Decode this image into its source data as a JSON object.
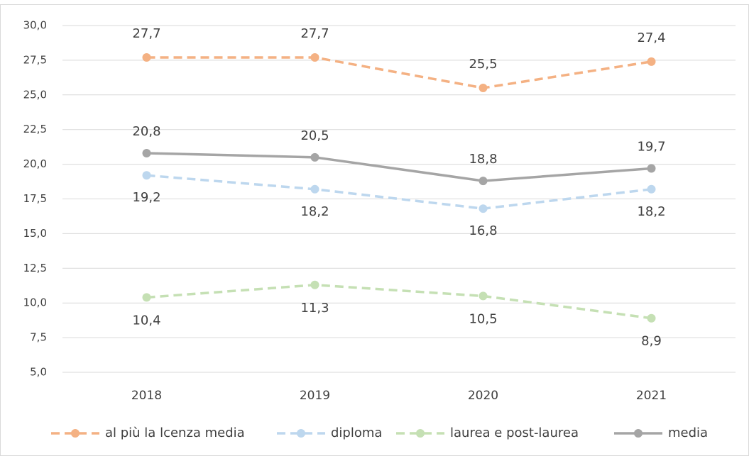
{
  "chart_data": {
    "type": "line",
    "categories": [
      "2018",
      "2019",
      "2020",
      "2021"
    ],
    "series": [
      {
        "name": "al più la lcenza media",
        "color": "#f4b183",
        "dashed": true,
        "values": [
          27.7,
          27.7,
          25.5,
          27.4
        ],
        "value_labels": [
          "27,7",
          "27,7",
          "25,5",
          "27,4"
        ]
      },
      {
        "name": "diploma",
        "color": "#bdd7ee",
        "dashed": true,
        "values": [
          19.2,
          18.2,
          16.8,
          18.2
        ],
        "value_labels": [
          "19,2",
          "18,2",
          "16,8",
          "18,2"
        ]
      },
      {
        "name": "laurea e post-laurea",
        "color": "#c5e0b4",
        "dashed": true,
        "values": [
          10.4,
          11.3,
          10.5,
          8.9
        ],
        "value_labels": [
          "10,4",
          "11,3",
          "10,5",
          "8,9"
        ]
      },
      {
        "name": "media",
        "color": "#a5a5a5",
        "dashed": false,
        "values": [
          20.8,
          20.5,
          18.8,
          19.7
        ],
        "value_labels": [
          "20,8",
          "20,5",
          "18,8",
          "19,7"
        ]
      }
    ],
    "ylim": [
      5,
      30
    ],
    "yticks": [
      {
        "value": 5,
        "label": "5,0"
      },
      {
        "value": 7.5,
        "label": "7,5"
      },
      {
        "value": 10,
        "label": "10,0"
      },
      {
        "value": 12.5,
        "label": "12,5"
      },
      {
        "value": 15,
        "label": "15,0"
      },
      {
        "value": 17.5,
        "label": "17,5"
      },
      {
        "value": 20,
        "label": "20,0"
      },
      {
        "value": 22.5,
        "label": "22,5"
      },
      {
        "value": 25,
        "label": "25,0"
      },
      {
        "value": 27.5,
        "label": "27,5"
      },
      {
        "value": 30,
        "label": "30,0"
      }
    ],
    "grid": true,
    "legend": "bottom"
  }
}
